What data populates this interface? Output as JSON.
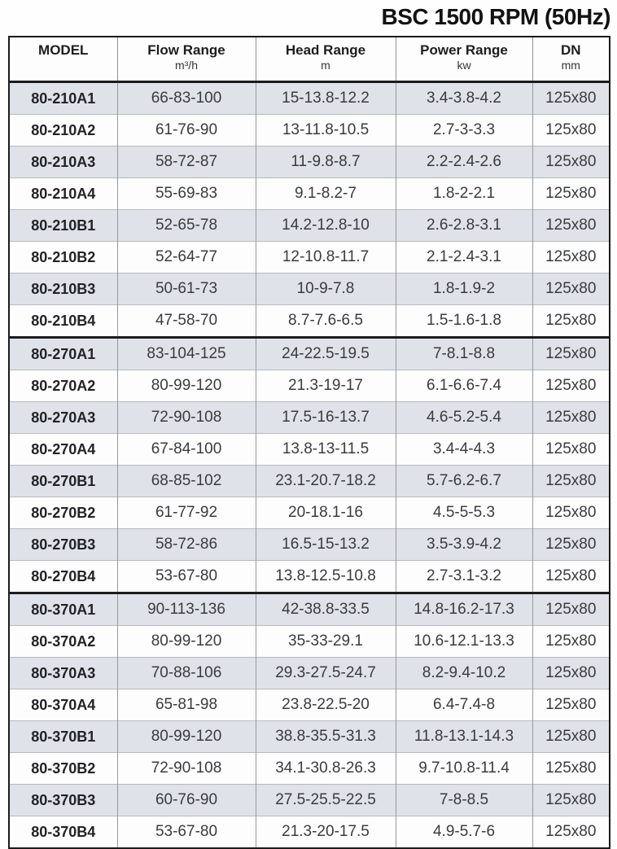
{
  "title": "BSC 1500 RPM (50Hz)",
  "colors": {
    "row_shade": "#dfe2e8",
    "row_plain": "#fdfdfe",
    "border_dark": "#1b1b1b",
    "border_column": "#97999e",
    "border_row": "#b6bac0",
    "text_dark": "#232325",
    "text_data": "#3a3b3d"
  },
  "table": {
    "columns": [
      {
        "label": "MODEL",
        "unit": ""
      },
      {
        "label": "Flow Range",
        "unit": "m³/h"
      },
      {
        "label": "Head Range",
        "unit": "m"
      },
      {
        "label": "Power Range",
        "unit": "kw"
      },
      {
        "label": "DN",
        "unit": "mm"
      }
    ],
    "groups": [
      {
        "name": "80-210",
        "rows": [
          [
            "80-210A1",
            "66-83-100",
            "15-13.8-12.2",
            "3.4-3.8-4.2",
            "125x80"
          ],
          [
            "80-210A2",
            "61-76-90",
            "13-11.8-10.5",
            "2.7-3-3.3",
            "125x80"
          ],
          [
            "80-210A3",
            "58-72-87",
            "11-9.8-8.7",
            "2.2-2.4-2.6",
            "125x80"
          ],
          [
            "80-210A4",
            "55-69-83",
            "9.1-8.2-7",
            "1.8-2-2.1",
            "125x80"
          ],
          [
            "80-210B1",
            "52-65-78",
            "14.2-12.8-10",
            "2.6-2.8-3.1",
            "125x80"
          ],
          [
            "80-210B2",
            "52-64-77",
            "12-10.8-11.7",
            "2.1-2.4-3.1",
            "125x80"
          ],
          [
            "80-210B3",
            "50-61-73",
            "10-9-7.8",
            "1.8-1.9-2",
            "125x80"
          ],
          [
            "80-210B4",
            "47-58-70",
            "8.7-7.6-6.5",
            "1.5-1.6-1.8",
            "125x80"
          ]
        ]
      },
      {
        "name": "80-270",
        "rows": [
          [
            "80-270A1",
            "83-104-125",
            "24-22.5-19.5",
            "7-8.1-8.8",
            "125x80"
          ],
          [
            "80-270A2",
            "80-99-120",
            "21.3-19-17",
            "6.1-6.6-7.4",
            "125x80"
          ],
          [
            "80-270A3",
            "72-90-108",
            "17.5-16-13.7",
            "4.6-5.2-5.4",
            "125x80"
          ],
          [
            "80-270A4",
            "67-84-100",
            "13.8-13-11.5",
            "3.4-4-4.3",
            "125x80"
          ],
          [
            "80-270B1",
            "68-85-102",
            "23.1-20.7-18.2",
            "5.7-6.2-6.7",
            "125x80"
          ],
          [
            "80-270B2",
            "61-77-92",
            "20-18.1-16",
            "4.5-5-5.3",
            "125x80"
          ],
          [
            "80-270B3",
            "58-72-86",
            "16.5-15-13.2",
            "3.5-3.9-4.2",
            "125x80"
          ],
          [
            "80-270B4",
            "53-67-80",
            "13.8-12.5-10.8",
            "2.7-3.1-3.2",
            "125x80"
          ]
        ]
      },
      {
        "name": "80-370",
        "rows": [
          [
            "80-370A1",
            "90-113-136",
            "42-38.8-33.5",
            "14.8-16.2-17.3",
            "125x80"
          ],
          [
            "80-370A2",
            "80-99-120",
            "35-33-29.1",
            "10.6-12.1-13.3",
            "125x80"
          ],
          [
            "80-370A3",
            "70-88-106",
            "29.3-27.5-24.7",
            "8.2-9.4-10.2",
            "125x80"
          ],
          [
            "80-370A4",
            "65-81-98",
            "23.8-22.5-20",
            "6.4-7.4-8",
            "125x80"
          ],
          [
            "80-370B1",
            "80-99-120",
            "38.8-35.5-31.3",
            "11.8-13.1-14.3",
            "125x80"
          ],
          [
            "80-370B2",
            "72-90-108",
            "34.1-30.8-26.3",
            "9.7-10.8-11.4",
            "125x80"
          ],
          [
            "80-370B3",
            "60-76-90",
            "27.5-25.5-22.5",
            "7-8-8.5",
            "125x80"
          ],
          [
            "80-370B4",
            "53-67-80",
            "21.3-20-17.5",
            "4.9-5.7-6",
            "125x80"
          ]
        ]
      }
    ]
  }
}
